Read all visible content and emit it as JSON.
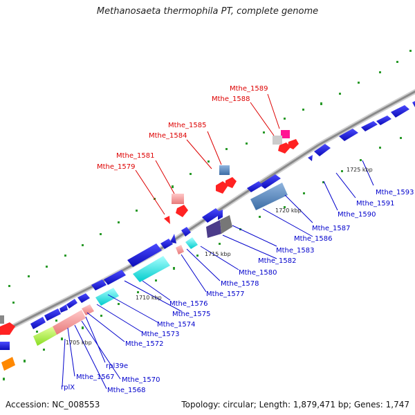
{
  "title": "Methanosaeta thermophila PT, complete genome",
  "footer": {
    "accession": "Accession: NC_008553",
    "summary": "Topology: circular; Length: 1,879,471 bp; Genes: 1,747"
  },
  "colors": {
    "forward_strand_label": "#dd0000",
    "reverse_strand_label": "#0000cc",
    "backbone": "#999999",
    "tick": "#229922",
    "cds": "#1c1ccc"
  },
  "ruler": [
    "1705 kbp",
    "1710 kbp",
    "1715 kbp",
    "1720 kbp",
    "1725 kbp"
  ],
  "labels_forward": [
    "Mthe_1589",
    "Mthe_1588",
    "Mthe_1585",
    "Mthe_1584",
    "Mthe_1581",
    "Mthe_1579"
  ],
  "labels_reverse": [
    "Mthe_1593",
    "Mthe_1591",
    "Mthe_1590",
    "Mthe_1587",
    "Mthe_1586",
    "Mthe_1583",
    "Mthe_1582",
    "Mthe_1580",
    "Mthe_1578",
    "Mthe_1577",
    "Mthe_1576",
    "Mthe_1575",
    "Mthe_1574",
    "Mthe_1573",
    "Mthe_1572",
    "rpl39e",
    "Mthe_1570",
    "Mthe_1568",
    "Mthe_1567",
    "rplX"
  ]
}
